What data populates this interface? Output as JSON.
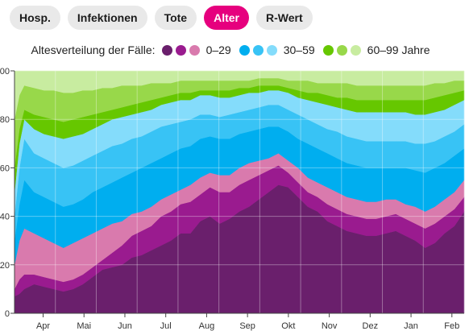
{
  "tabs": [
    {
      "label": "Hosp.",
      "active": false
    },
    {
      "label": "Infektionen",
      "active": false
    },
    {
      "label": "Tote",
      "active": false
    },
    {
      "label": "Alter",
      "active": true
    },
    {
      "label": "R-Wert",
      "active": false
    }
  ],
  "legend": {
    "title": "Altesverteilung der Fälle:",
    "groups": [
      {
        "label": "0–29",
        "colors": [
          "#6a1f6c",
          "#9a1b8f",
          "#d97aad"
        ]
      },
      {
        "label": "30–59",
        "colors": [
          "#00aeef",
          "#38c3f5",
          "#84dcfb"
        ]
      },
      {
        "label": "60–99 Jahre",
        "colors": [
          "#66c700",
          "#98d84a",
          "#c8eca0"
        ]
      }
    ]
  },
  "colors": {
    "active_tab": "#e6007e",
    "series": [
      "#6a1f6c",
      "#9a1b8f",
      "#d97aad",
      "#00aeef",
      "#38c3f5",
      "#84dcfb",
      "#66c700",
      "#98d84a",
      "#c8eca0"
    ]
  },
  "chart_data": {
    "type": "area",
    "stacked": true,
    "ylim": [
      0,
      100
    ],
    "yticks": [
      0,
      20,
      40,
      60,
      80,
      100
    ],
    "xticks": [
      "Apr",
      "Mai",
      "Jun",
      "Jul",
      "Aug",
      "Sep",
      "Okt",
      "Nov",
      "Dez",
      "Jan",
      "Feb"
    ],
    "grid": true,
    "x_index": [
      0,
      0.5,
      1,
      2,
      3,
      4,
      5,
      6,
      7,
      8,
      9,
      10,
      11,
      12,
      13,
      14,
      15,
      16,
      17,
      18,
      19,
      20,
      21,
      22,
      23,
      24,
      25,
      26,
      27,
      28,
      29,
      30,
      31,
      32,
      33,
      34,
      35,
      36,
      37,
      38,
      39,
      40,
      41,
      42,
      43,
      44,
      45,
      46
    ],
    "cumulative_tops": [
      [
        7,
        8,
        10,
        12,
        11,
        10,
        9,
        10,
        12,
        15,
        18,
        19,
        20,
        23,
        24,
        26,
        28,
        30,
        33,
        33,
        38,
        40,
        37,
        39,
        42,
        44,
        47,
        50,
        53,
        52,
        48,
        44,
        42,
        38,
        36,
        34,
        33,
        32,
        32,
        33,
        34,
        32,
        30,
        27,
        29,
        33,
        36,
        42
      ],
      [
        10,
        14,
        16,
        16,
        15,
        14,
        13,
        14,
        16,
        19,
        22,
        25,
        28,
        32,
        34,
        36,
        40,
        42,
        45,
        46,
        49,
        52,
        50,
        50,
        53,
        55,
        57,
        59,
        61,
        58,
        54,
        50,
        48,
        45,
        43,
        41,
        40,
        39,
        39,
        40,
        41,
        39,
        37,
        35,
        37,
        40,
        43,
        48
      ],
      [
        20,
        30,
        35,
        33,
        31,
        29,
        27,
        29,
        31,
        33,
        35,
        37,
        38,
        41,
        42,
        44,
        47,
        49,
        51,
        53,
        56,
        58,
        57,
        57,
        60,
        62,
        63,
        64,
        66,
        63,
        60,
        56,
        54,
        52,
        50,
        48,
        47,
        46,
        46,
        47,
        47,
        45,
        44,
        42,
        44,
        47,
        50,
        55
      ],
      [
        30,
        45,
        55,
        50,
        48,
        46,
        44,
        45,
        47,
        50,
        52,
        54,
        56,
        58,
        60,
        62,
        64,
        66,
        68,
        69,
        72,
        73,
        72,
        72,
        74,
        75,
        76,
        77,
        77,
        75,
        72,
        70,
        68,
        66,
        64,
        62,
        61,
        60,
        60,
        60,
        60,
        60,
        59,
        58,
        60,
        62,
        65,
        68
      ],
      [
        40,
        60,
        72,
        66,
        64,
        62,
        60,
        61,
        63,
        65,
        67,
        69,
        70,
        72,
        73,
        75,
        77,
        78,
        79,
        80,
        82,
        82,
        81,
        82,
        83,
        84,
        85,
        86,
        86,
        84,
        82,
        80,
        78,
        76,
        75,
        73,
        72,
        71,
        71,
        71,
        71,
        71,
        70,
        70,
        71,
        73,
        75,
        78
      ],
      [
        50,
        70,
        80,
        76,
        74,
        73,
        72,
        73,
        74,
        76,
        78,
        80,
        81,
        82,
        83,
        84,
        86,
        87,
        88,
        88,
        90,
        90,
        89,
        89,
        90,
        91,
        91,
        92,
        92,
        91,
        89,
        88,
        87,
        86,
        85,
        84,
        83,
        83,
        83,
        83,
        83,
        83,
        82,
        82,
        83,
        84,
        86,
        88
      ],
      [
        60,
        76,
        84,
        82,
        81,
        80,
        79,
        80,
        81,
        82,
        83,
        84,
        85,
        86,
        87,
        88,
        89,
        90,
        91,
        91,
        92,
        92,
        92,
        92,
        93,
        93,
        94,
        94,
        94,
        93,
        92,
        91,
        91,
        90,
        89,
        89,
        88,
        88,
        88,
        88,
        88,
        88,
        88,
        88,
        89,
        90,
        91,
        92
      ],
      [
        80,
        90,
        94,
        93,
        92,
        92,
        91,
        91,
        92,
        92,
        93,
        93,
        94,
        94,
        94,
        95,
        95,
        95,
        96,
        96,
        96,
        96,
        96,
        96,
        96,
        96,
        97,
        97,
        97,
        96,
        96,
        96,
        95,
        95,
        95,
        95,
        94,
        94,
        94,
        94,
        94,
        94,
        94,
        94,
        95,
        95,
        96,
        96
      ],
      [
        100,
        100,
        100,
        100,
        100,
        100,
        100,
        100,
        100,
        100,
        100,
        100,
        100,
        100,
        100,
        100,
        100,
        100,
        100,
        100,
        100,
        100,
        100,
        100,
        100,
        100,
        100,
        100,
        100,
        100,
        100,
        100,
        100,
        100,
        100,
        100,
        100,
        100,
        100,
        100,
        100,
        100,
        100,
        100,
        100,
        100,
        100,
        100
      ]
    ]
  }
}
